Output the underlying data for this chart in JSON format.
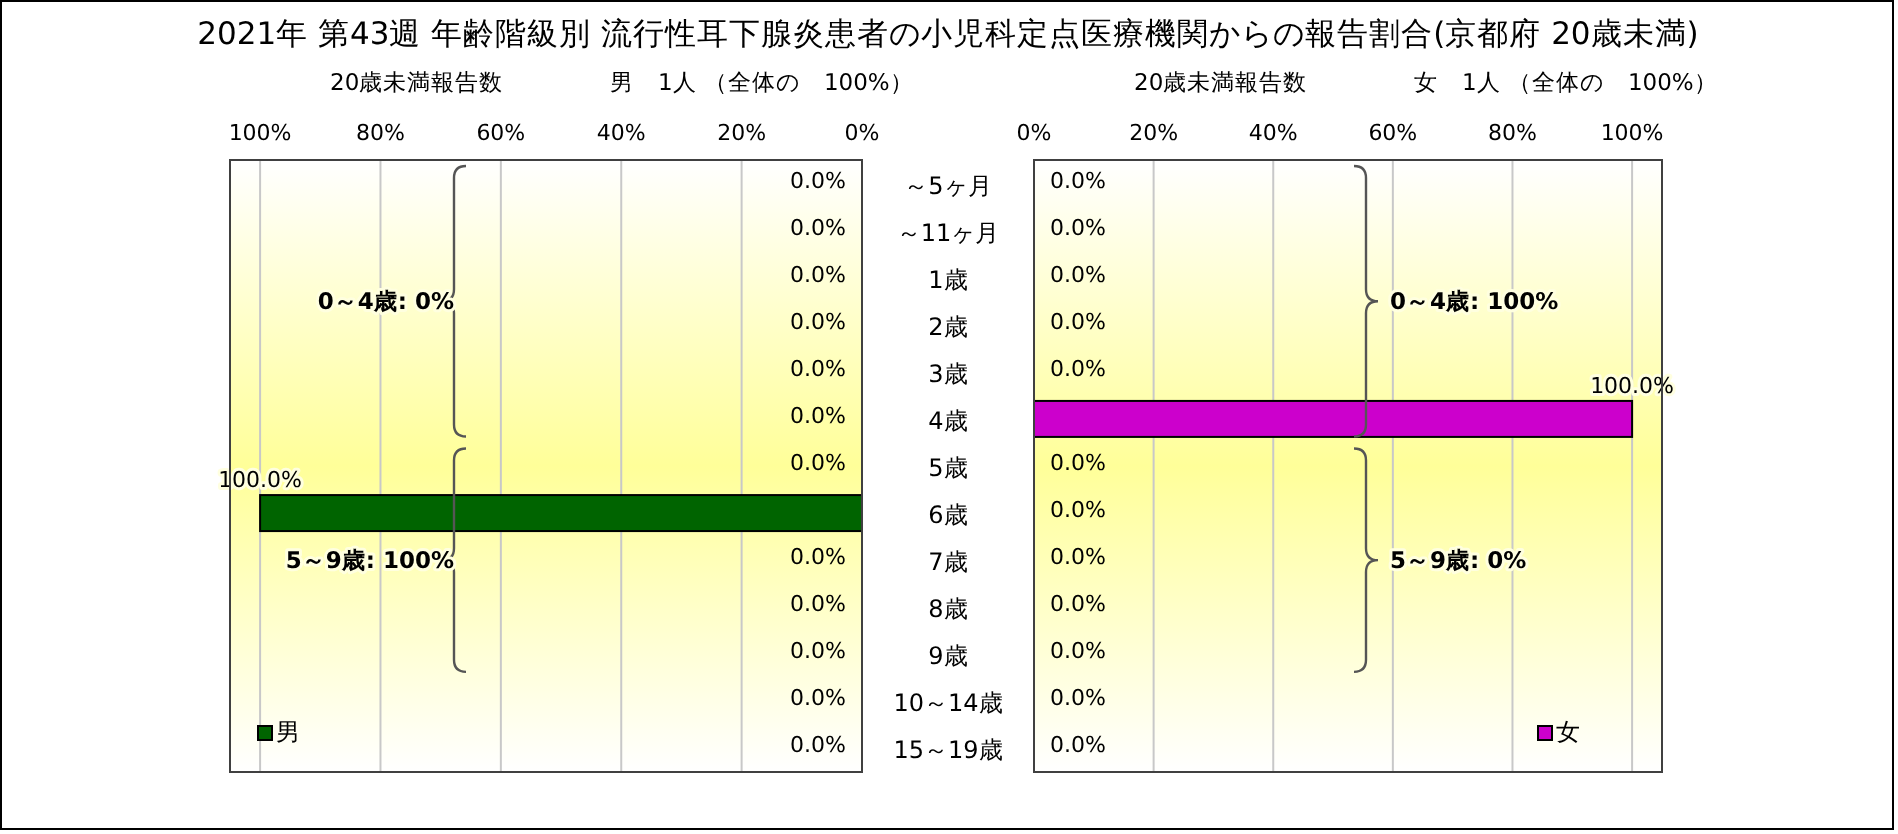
{
  "chart_data": [
    {
      "type": "bar",
      "orientation": "horizontal",
      "title": "2021年 第43週 年齢階級別 流行性耳下腺炎患者の小児科定点医療機関からの報告割合(京都府 20歳未満)",
      "categories": [
        null,
        null,
        null,
        null,
        null,
        null,
        null,
        null,
        null,
        null,
        null,
        null,
        null
      ],
      "tick_labels": "x",
      "series": [
        {
          "name": "男",
          "color": "#006400",
          "values": [
            0,
            0,
            0,
            0,
            0,
            0,
            0,
            100,
            0,
            0,
            0,
            0,
            0
          ],
          "value_labels": [
            "0.0%",
            "0.0%",
            "0.0%",
            "0.0%",
            "0.0%",
            "0.0%",
            "0.0%",
            "100.0%",
            "0.0%",
            "0.0%",
            "0.0%",
            "0.0%",
            "0.0%"
          ]
        }
      ],
      "xlim": [
        105,
        0
      ],
      "xticks": [
        {
          "value": 100,
          "label": "100%"
        },
        {
          "value": 80,
          "label": "80%"
        },
        {
          "value": 60,
          "label": "60%"
        },
        {
          "value": 40,
          "label": "40%"
        },
        {
          "value": 20,
          "label": "20%"
        },
        {
          "value": 0,
          "label": "0%"
        }
      ],
      "grid": "x",
      "legend": "bottom left",
      "annotations": [
        "20歳未満報告数",
        "男　1人 （全体の　100%）",
        "0～4歳: 0%",
        "5～9歳: 100%"
      ]
    },
    {
      "type": "bar",
      "orientation": "horizontal",
      "categories": [
        "～5ヶ月",
        "～11ヶ月",
        "1歳",
        "2歳",
        "3歳",
        "4歳",
        "5歳",
        "6歳",
        "7歳",
        "8歳",
        "9歳",
        "10～14歳",
        "15～19歳"
      ],
      "series": [
        {
          "name": "女",
          "color": "#cc00cc",
          "values": [
            0,
            0,
            0,
            0,
            0,
            100,
            0,
            0,
            0,
            0,
            0,
            0,
            0
          ],
          "value_labels": [
            "0.0%",
            "0.0%",
            "0.0%",
            "0.0%",
            "0.0%",
            "100.0%",
            "0.0%",
            "0.0%",
            "0.0%",
            "0.0%",
            "0.0%",
            "0.0%",
            "0.0%"
          ]
        }
      ],
      "xlim": [
        0,
        105
      ],
      "xticks": [
        {
          "value": 0,
          "label": "0%"
        },
        {
          "value": 20,
          "label": "20%"
        },
        {
          "value": 40,
          "label": "40%"
        },
        {
          "value": 60,
          "label": "60%"
        },
        {
          "value": 80,
          "label": "80%"
        },
        {
          "value": 100,
          "label": "100%"
        }
      ],
      "grid": "x",
      "legend": "bottom right",
      "annotations": [
        "20歳未満報告数",
        "女　1人 （全体の　100%）",
        "0～4歳: 100%",
        "5～9歳: 0%"
      ]
    }
  ]
}
